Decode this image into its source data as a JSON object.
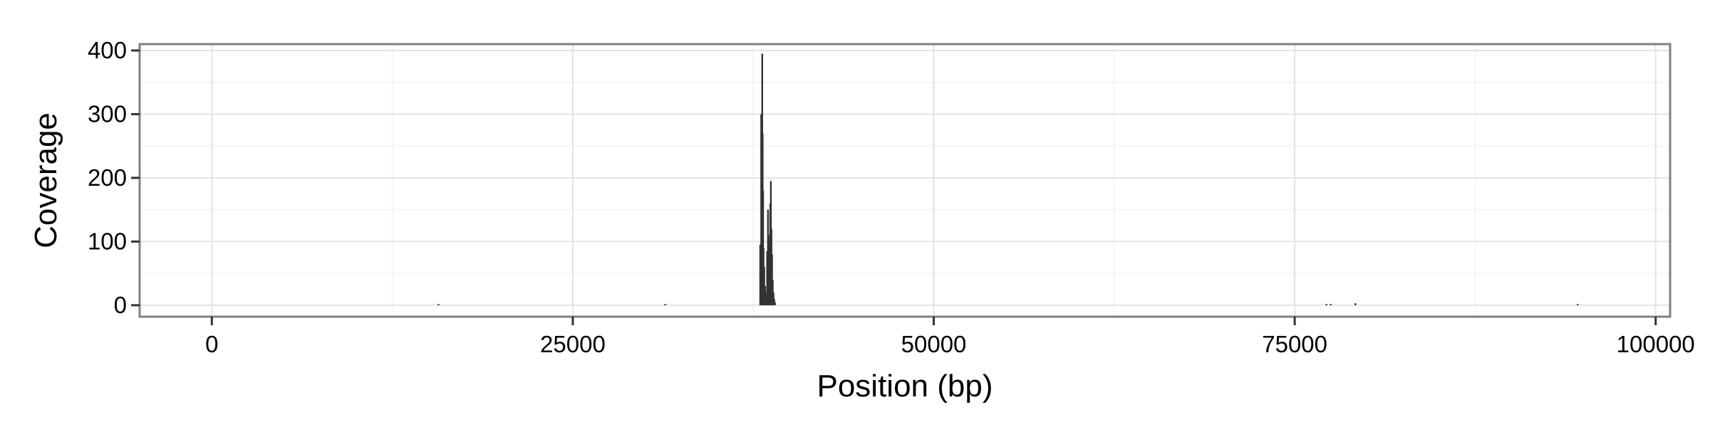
{
  "chart_data": {
    "type": "bar",
    "title": "",
    "xlabel": "Position (bp)",
    "ylabel": "Coverage",
    "xlim": [
      -5000,
      101000
    ],
    "ylim": [
      -18,
      410
    ],
    "x_ticks": [
      0,
      25000,
      50000,
      75000,
      100000
    ],
    "x_tick_labels": [
      "0",
      "25000",
      "50000",
      "75000",
      "100000"
    ],
    "y_ticks": [
      0,
      100,
      200,
      300,
      400
    ],
    "y_tick_labels": [
      "0",
      "100",
      "200",
      "300",
      "400"
    ],
    "grid": true,
    "legend": "none",
    "colors": {
      "bar": "#333333",
      "panel_border": "#7f7f7f",
      "grid_major": "#e3e3e3",
      "grid_minor": "#f2f2f2",
      "axis_tick": "#333333"
    },
    "series": [
      {
        "x": [
          15700,
          31400,
          37980,
          38050,
          38120,
          38150,
          38180,
          38210,
          38260,
          38320,
          38400,
          38460,
          38520,
          38560,
          38600,
          38640,
          38680,
          38720,
          38760,
          38800,
          38850,
          38900,
          38950,
          39000,
          77200,
          77500,
          79200,
          94600
        ],
        "values": [
          2,
          2,
          95,
          300,
          395,
          270,
          180,
          90,
          60,
          30,
          20,
          85,
          150,
          110,
          75,
          90,
          160,
          195,
          120,
          80,
          40,
          20,
          10,
          5,
          2,
          2,
          3,
          2
        ]
      }
    ]
  }
}
